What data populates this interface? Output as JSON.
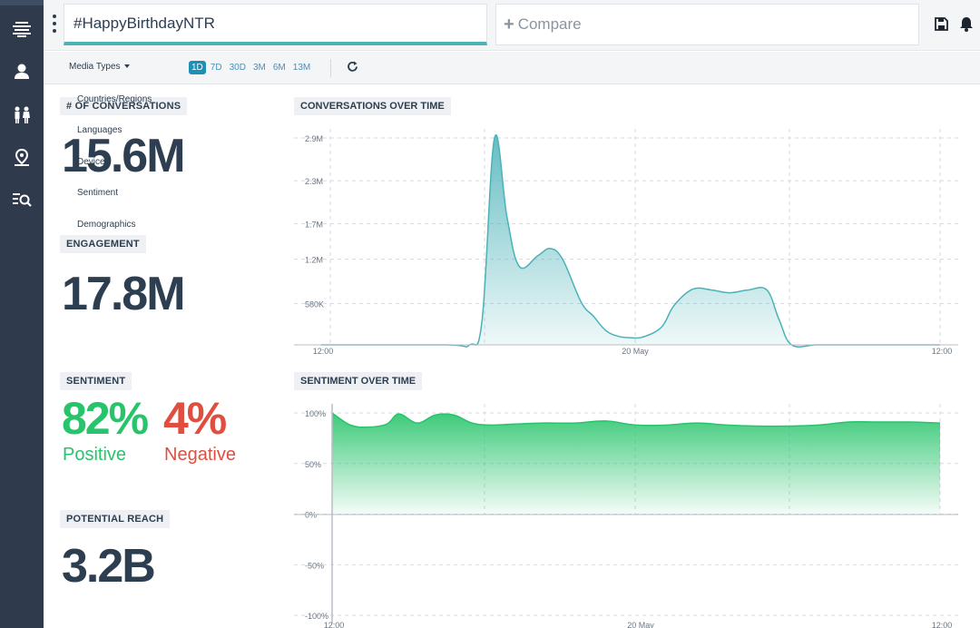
{
  "search": {
    "query": "#HappyBirthdayNTR",
    "compare_label": "Compare"
  },
  "sidebar": {
    "icons": [
      "menu-icon",
      "person-icon",
      "people-icon",
      "location-pin-icon",
      "search-list-icon"
    ]
  },
  "toolbar": {
    "media_types": "Media Types",
    "ranges": [
      "1D",
      "7D",
      "30D",
      "3M",
      "6M",
      "13M"
    ],
    "active_range": "1D"
  },
  "dropdown": {
    "items": [
      "Countries/Regions",
      "Languages",
      "Devices",
      "Sentiment",
      "Demographics"
    ]
  },
  "metrics": {
    "conversations_label": "# OF CONVERSATIONS",
    "conversations_value": "15.6M",
    "engagement_label": "ENGAGEMENT",
    "engagement_value": "17.8M",
    "sentiment_label": "SENTIMENT",
    "positive_pct": "82%",
    "positive_label": "Positive",
    "negative_pct": "4%",
    "negative_label": "Negative",
    "reach_label": "POTENTIAL REACH",
    "reach_value": "3.2B"
  },
  "colors": {
    "teal": "#4ab2b8",
    "positive": "#27c46b",
    "negative": "#e04e3f",
    "sidebar": "#2f3b4c"
  },
  "chart_data": [
    {
      "type": "area",
      "title": "CONVERSATIONS OVER TIME",
      "y_ticks": [
        "2.9M",
        "2.3M",
        "1.7M",
        "1.2M",
        "580K"
      ],
      "x_ticks": [
        "12:00",
        "20 May",
        "12:00"
      ],
      "ylim": [
        0,
        2900000
      ],
      "x": [
        0,
        0.2,
        0.24,
        0.26,
        0.28,
        0.3,
        0.32,
        0.35,
        0.37,
        0.39,
        0.42,
        0.44,
        0.46,
        0.48,
        0.5,
        0.52,
        0.55,
        0.57,
        0.6,
        0.63,
        0.66,
        0.69,
        0.72,
        0.74,
        0.76,
        0.8,
        0.84,
        0.87,
        0.9,
        0.94,
        0.97,
        1.0
      ],
      "values": [
        0,
        0,
        0,
        350000,
        2900000,
        1800000,
        1100000,
        1250000,
        1350000,
        1200000,
        600000,
        400000,
        200000,
        120000,
        100000,
        110000,
        250000,
        550000,
        780000,
        770000,
        730000,
        770000,
        770000,
        350000,
        0,
        0,
        0,
        0,
        0,
        0,
        0,
        0
      ],
      "grid": true
    },
    {
      "type": "area",
      "title": "SENTIMENT OVER TIME",
      "y_ticks": [
        "100%",
        "50%",
        "0%",
        "-50%",
        "-100%"
      ],
      "x_ticks": [
        "12:00",
        "20 May",
        "12:00"
      ],
      "ylim": [
        -100,
        100
      ],
      "x": [
        0,
        0.03,
        0.06,
        0.09,
        0.11,
        0.14,
        0.17,
        0.2,
        0.23,
        0.26,
        0.3,
        0.35,
        0.4,
        0.45,
        0.5,
        0.55,
        0.6,
        0.65,
        0.7,
        0.75,
        0.8,
        0.85,
        0.9,
        0.95,
        1.0
      ],
      "values": [
        100,
        88,
        86,
        89,
        99,
        90,
        98,
        98,
        90,
        88,
        89,
        90,
        90,
        92,
        88,
        88,
        90,
        88,
        87,
        87,
        88,
        91,
        91,
        91,
        90
      ],
      "grid": true
    }
  ]
}
